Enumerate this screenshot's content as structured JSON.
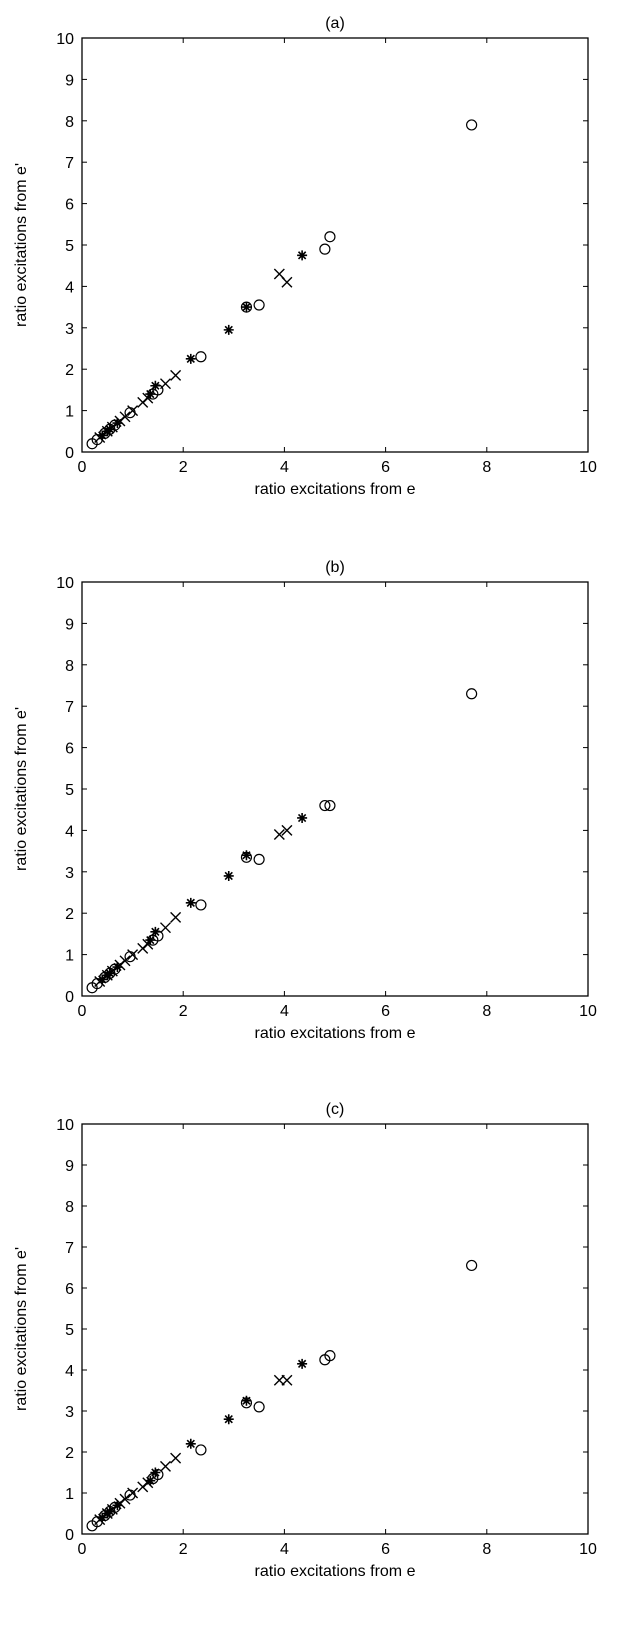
{
  "chart_data": [
    {
      "type": "scatter",
      "title": "(a)",
      "xlabel": "ratio excitations from e",
      "ylabel": "ratio excitations from e'",
      "xlim": [
        0,
        10
      ],
      "ylim": [
        0,
        10
      ],
      "xticks": [
        "0",
        "2",
        "4",
        "6",
        "8",
        "10"
      ],
      "yticks": [
        "0",
        "1",
        "2",
        "3",
        "4",
        "5",
        "6",
        "7",
        "8",
        "9",
        "10"
      ],
      "grid": false,
      "series": [
        {
          "marker": "circle",
          "x": [
            0.2,
            0.3,
            0.45,
            0.55,
            0.65,
            0.95,
            1.4,
            1.5,
            2.35,
            3.25,
            3.5,
            4.8,
            4.9,
            7.7
          ],
          "y": [
            0.2,
            0.3,
            0.45,
            0.55,
            0.65,
            0.95,
            1.4,
            1.5,
            2.3,
            3.5,
            3.55,
            4.9,
            5.2,
            7.9
          ]
        },
        {
          "marker": "x",
          "x": [
            0.35,
            0.5,
            0.6,
            0.75,
            0.85,
            1.0,
            1.2,
            1.3,
            1.65,
            1.85,
            3.9,
            4.05
          ],
          "y": [
            0.35,
            0.5,
            0.6,
            0.75,
            0.85,
            1.0,
            1.2,
            1.3,
            1.65,
            1.85,
            4.3,
            4.1
          ]
        },
        {
          "marker": "star",
          "x": [
            0.4,
            0.5,
            0.55,
            0.7,
            1.35,
            1.45,
            2.15,
            2.9,
            3.25,
            4.35
          ],
          "y": [
            0.4,
            0.5,
            0.55,
            0.7,
            1.4,
            1.6,
            2.25,
            2.95,
            3.5,
            4.75
          ]
        }
      ]
    },
    {
      "type": "scatter",
      "title": "(b)",
      "xlabel": "ratio excitations from e",
      "ylabel": "ratio excitations from e'",
      "xlim": [
        0,
        10
      ],
      "ylim": [
        0,
        10
      ],
      "xticks": [
        "0",
        "2",
        "4",
        "6",
        "8",
        "10"
      ],
      "yticks": [
        "0",
        "1",
        "2",
        "3",
        "4",
        "5",
        "6",
        "7",
        "8",
        "9",
        "10"
      ],
      "grid": false,
      "series": [
        {
          "marker": "circle",
          "x": [
            0.2,
            0.3,
            0.45,
            0.55,
            0.65,
            0.95,
            1.4,
            1.5,
            2.35,
            3.25,
            3.5,
            4.8,
            4.9,
            7.7
          ],
          "y": [
            0.2,
            0.3,
            0.45,
            0.55,
            0.65,
            0.95,
            1.35,
            1.45,
            2.2,
            3.35,
            3.3,
            4.6,
            4.6,
            7.3
          ]
        },
        {
          "marker": "x",
          "x": [
            0.35,
            0.5,
            0.6,
            0.75,
            0.85,
            1.0,
            1.2,
            1.3,
            1.65,
            1.85,
            3.9,
            4.05
          ],
          "y": [
            0.35,
            0.5,
            0.6,
            0.75,
            0.85,
            1.0,
            1.15,
            1.25,
            1.65,
            1.9,
            3.9,
            4.0
          ]
        },
        {
          "marker": "star",
          "x": [
            0.4,
            0.5,
            0.55,
            0.7,
            1.35,
            1.45,
            2.15,
            2.9,
            3.25,
            4.35
          ],
          "y": [
            0.4,
            0.5,
            0.55,
            0.7,
            1.35,
            1.55,
            2.25,
            2.9,
            3.4,
            4.3
          ]
        }
      ]
    },
    {
      "type": "scatter",
      "title": "(c)",
      "xlabel": "ratio excitations from e",
      "ylabel": "ratio excitations from e'",
      "xlim": [
        0,
        10
      ],
      "ylim": [
        0,
        10
      ],
      "xticks": [
        "0",
        "2",
        "4",
        "6",
        "8",
        "10"
      ],
      "yticks": [
        "0",
        "1",
        "2",
        "3",
        "4",
        "5",
        "6",
        "7",
        "8",
        "9",
        "10"
      ],
      "grid": false,
      "series": [
        {
          "marker": "circle",
          "x": [
            0.2,
            0.3,
            0.45,
            0.55,
            0.65,
            0.95,
            1.4,
            1.5,
            2.35,
            3.25,
            3.5,
            4.8,
            4.9,
            7.7
          ],
          "y": [
            0.2,
            0.3,
            0.45,
            0.55,
            0.65,
            0.95,
            1.35,
            1.45,
            2.05,
            3.2,
            3.1,
            4.25,
            4.35,
            6.55
          ]
        },
        {
          "marker": "x",
          "x": [
            0.35,
            0.5,
            0.6,
            0.75,
            0.85,
            1.0,
            1.2,
            1.3,
            1.65,
            1.85,
            3.9,
            4.05
          ],
          "y": [
            0.35,
            0.5,
            0.6,
            0.75,
            0.85,
            1.0,
            1.15,
            1.25,
            1.65,
            1.85,
            3.75,
            3.75
          ]
        },
        {
          "marker": "star",
          "x": [
            0.4,
            0.5,
            0.55,
            0.7,
            1.35,
            1.45,
            2.15,
            2.9,
            3.25,
            4.35
          ],
          "y": [
            0.4,
            0.5,
            0.55,
            0.7,
            1.3,
            1.5,
            2.2,
            2.8,
            3.25,
            4.15
          ]
        }
      ]
    }
  ]
}
